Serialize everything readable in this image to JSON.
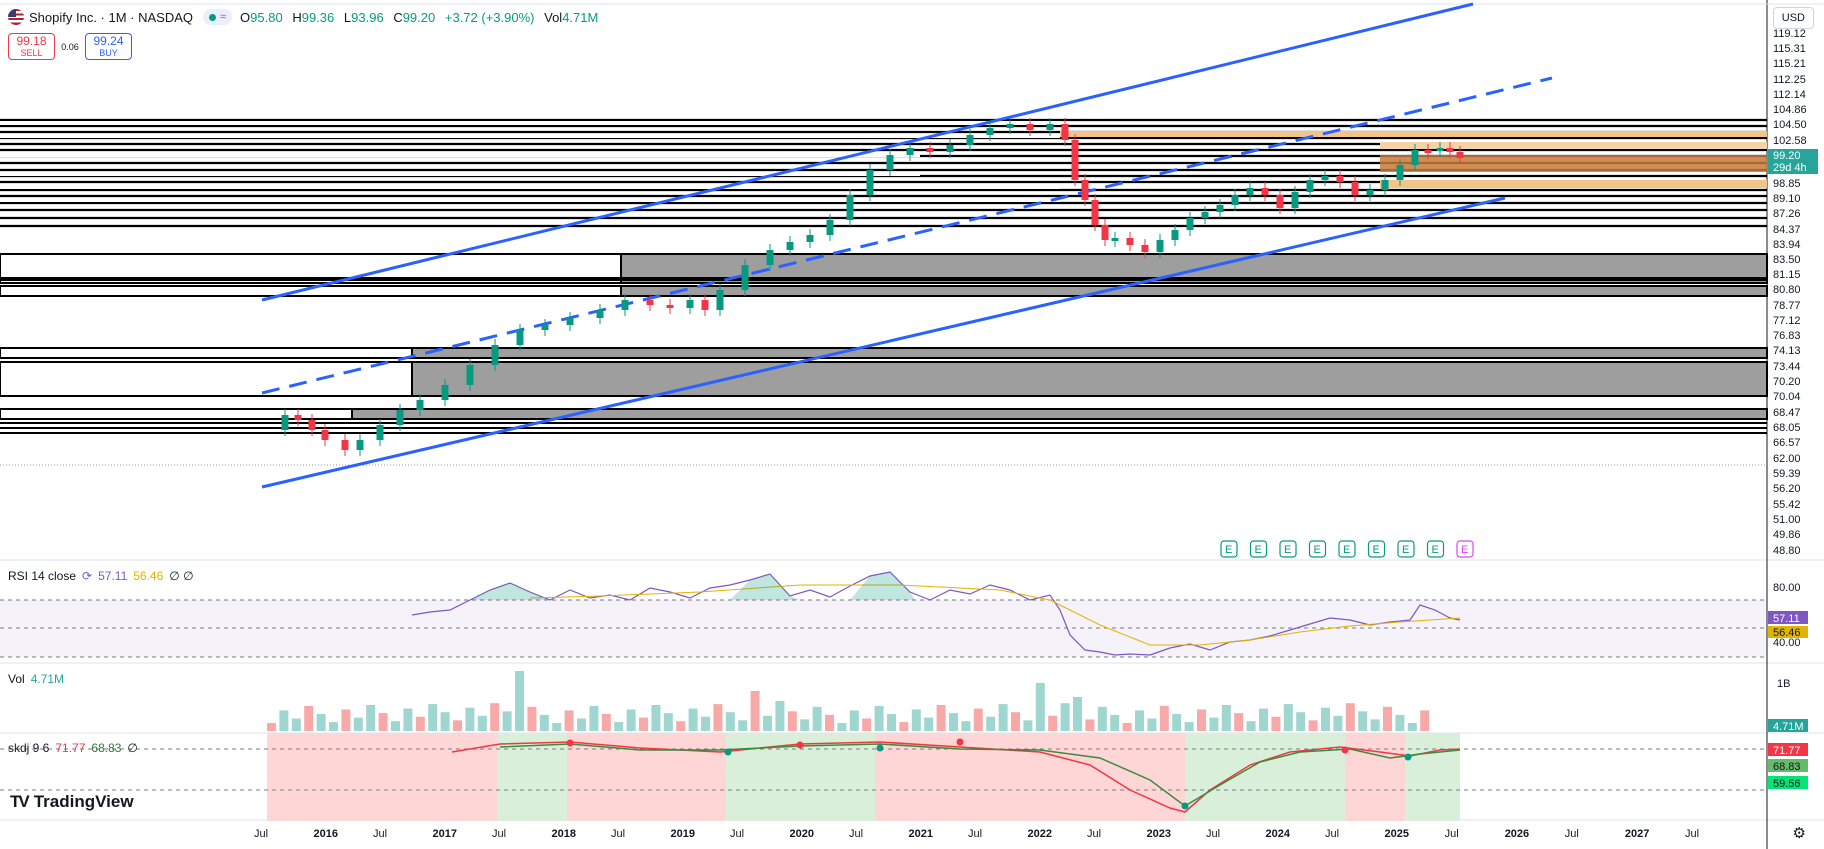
{
  "header": {
    "title": "Shopify Inc. · 1M · NASDAQ",
    "ohlc": {
      "o_label": "O",
      "o": "95.80",
      "h_label": "H",
      "h": "99.36",
      "l_label": "L",
      "l": "93.96",
      "c_label": "C",
      "c": "99.20",
      "change": "+3.72 (+3.90%)",
      "vol_label": "Vol",
      "vol": "4.71M"
    },
    "sell_price": "99.18",
    "sell_label": "SELL",
    "spread": "0.06",
    "buy_price": "99.24",
    "buy_label": "BUY",
    "currency": "USD"
  },
  "colors": {
    "up": "#089981",
    "down": "#f23645",
    "trend": "#2962ff",
    "accent": "#26a69a"
  },
  "price_axis": {
    "ticks": [
      "119.12",
      "115.31",
      "115.21",
      "112.25",
      "112.14",
      "104.86",
      "104.50",
      "102.58",
      "99.20",
      "29d 4h",
      "98.85",
      "89.10",
      "87.26",
      "84.37",
      "83.94",
      "83.50",
      "81.15",
      "80.80",
      "78.77",
      "77.12",
      "76.83",
      "74.13",
      "73.44",
      "70.20",
      "70.04",
      "68.47",
      "68.05",
      "66.57",
      "62.00",
      "59.39",
      "56.20",
      "55.42",
      "51.00",
      "49.86",
      "48.80"
    ]
  },
  "time_axis": {
    "labels": [
      "Jul",
      "2016",
      "Jul",
      "2017",
      "Jul",
      "2018",
      "Jul",
      "2019",
      "Jul",
      "2020",
      "Jul",
      "2021",
      "Jul",
      "2022",
      "Jul",
      "2023",
      "Jul",
      "2024",
      "Jul",
      "2025",
      "Jul",
      "2026",
      "Jul",
      "2027",
      "Jul"
    ]
  },
  "events": {
    "marker": "E",
    "count": 9
  },
  "rsi": {
    "label": "RSI 14 close",
    "value": "57.11",
    "ma": "56.46",
    "extra": "∅ ∅",
    "upper": "80.00",
    "mid_tag": "57.11",
    "ma_tag": "56.46",
    "lower": "40.00"
  },
  "volume": {
    "label": "Vol",
    "value": "4.71M",
    "axis_top": "1B",
    "tag": "4.71M"
  },
  "skdj": {
    "label": "skdj 9 6",
    "k": "71.77",
    "d": "68.83",
    "extra": "∅",
    "k_tag": "71.77",
    "d_tag": "68.83",
    "low_tag": "59.56"
  },
  "brand": "TradingView",
  "chart_data": {
    "type": "candlestick",
    "interval": "1M",
    "x_range": [
      "2015-05",
      "2025-03"
    ],
    "y_axis_labels": "non-linear tick labels as printed on the price axis",
    "last": {
      "open": 95.8,
      "high": 99.36,
      "low": 93.96,
      "close": 99.2,
      "volume": "4.71M"
    },
    "overlays": [
      "ascending channel (solid blue lines)",
      "channel midline (dashed blue)",
      "horizontal support/resistance rectangles (black, gray, orange)"
    ],
    "indicators": [
      {
        "name": "RSI 14 close",
        "value": 57.11,
        "ma": 56.46,
        "levels": [
          80,
          40
        ]
      },
      {
        "name": "Vol",
        "value": "4.71M"
      },
      {
        "name": "skdj 9 6",
        "k": 71.77,
        "d": 68.83
      }
    ]
  }
}
